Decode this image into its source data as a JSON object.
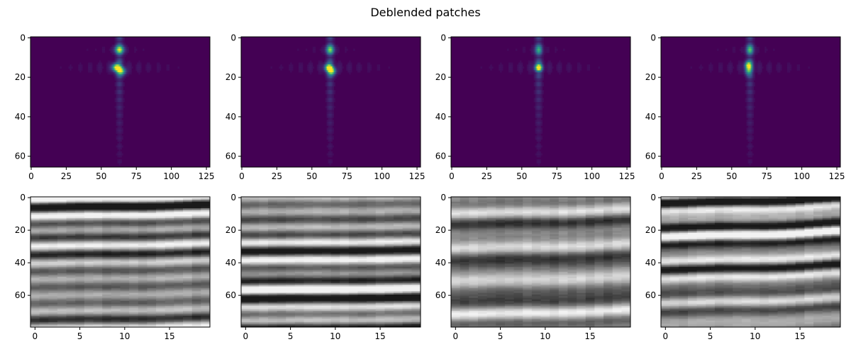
{
  "title": "Deblended patches",
  "colors": {
    "viridis_low": "#440154",
    "viridis_mid": "#21918c",
    "viridis_high": "#fde725",
    "gray_low": "#1a1a1a",
    "gray_high": "#f2f2f2"
  },
  "chart_data": [
    {
      "type": "heatmap",
      "row": "top",
      "index": 1,
      "colormap": "viridis",
      "xlim": [
        -0.5,
        127.5
      ],
      "ylim": [
        65.5,
        -0.5
      ],
      "xticks": [
        0,
        25,
        50,
        75,
        100,
        125
      ],
      "yticks": [
        0,
        20,
        40,
        60
      ],
      "features": {
        "peaks": [
          {
            "x": 63,
            "y": 6,
            "amp": 0.85
          },
          {
            "x": 61,
            "y": 15,
            "amp": 1.0
          },
          {
            "x": 64,
            "y": 17,
            "amp": 0.8
          }
        ],
        "streak_x": 63,
        "band_y": 15,
        "spread": 1.0
      }
    },
    {
      "type": "heatmap",
      "row": "top",
      "index": 2,
      "colormap": "viridis",
      "xlim": [
        -0.5,
        127.5
      ],
      "ylim": [
        65.5,
        -0.5
      ],
      "xticks": [
        0,
        25,
        50,
        75,
        100,
        125
      ],
      "yticks": [
        0,
        20,
        40,
        60
      ],
      "features": {
        "peaks": [
          {
            "x": 63,
            "y": 6,
            "amp": 0.7
          },
          {
            "x": 62,
            "y": 15,
            "amp": 0.9
          },
          {
            "x": 64,
            "y": 17,
            "amp": 0.85
          }
        ],
        "streak_x": 63,
        "band_y": 15,
        "spread": 0.9
      }
    },
    {
      "type": "heatmap",
      "row": "top",
      "index": 3,
      "colormap": "viridis",
      "xlim": [
        -0.5,
        127.5
      ],
      "ylim": [
        65.5,
        -0.5
      ],
      "xticks": [
        0,
        25,
        50,
        75,
        100,
        125
      ],
      "yticks": [
        0,
        20,
        40,
        60
      ],
      "features": {
        "peaks": [
          {
            "x": 62,
            "y": 6,
            "amp": 0.5
          },
          {
            "x": 62,
            "y": 15,
            "amp": 1.0
          }
        ],
        "streak_x": 62,
        "band_y": 15,
        "spread": 0.8
      }
    },
    {
      "type": "heatmap",
      "row": "top",
      "index": 4,
      "colormap": "viridis",
      "xlim": [
        -0.5,
        127.5
      ],
      "ylim": [
        65.5,
        -0.5
      ],
      "xticks": [
        0,
        25,
        50,
        75,
        100,
        125
      ],
      "yticks": [
        0,
        20,
        40,
        60
      ],
      "features": {
        "peaks": [
          {
            "x": 63,
            "y": 6,
            "amp": 0.6
          },
          {
            "x": 62,
            "y": 14,
            "amp": 0.95
          },
          {
            "x": 62,
            "y": 17,
            "amp": 0.5
          }
        ],
        "streak_x": 63,
        "band_y": 15,
        "spread": 0.8
      }
    },
    {
      "type": "heatmap",
      "row": "bottom",
      "index": 1,
      "colormap": "gray",
      "xlim": [
        -0.5,
        19.5
      ],
      "ylim": [
        79.5,
        -0.5
      ],
      "xticks": [
        0,
        5,
        10,
        15
      ],
      "yticks": [
        0,
        20,
        40,
        60
      ],
      "features": {
        "seed": 11,
        "dip": 0.08
      }
    },
    {
      "type": "heatmap",
      "row": "bottom",
      "index": 2,
      "colormap": "gray",
      "xlim": [
        -0.5,
        19.5
      ],
      "ylim": [
        79.5,
        -0.5
      ],
      "xticks": [
        0,
        5,
        10,
        15
      ],
      "yticks": [
        0,
        20,
        40,
        60
      ],
      "features": {
        "seed": 23,
        "dip": 0.04
      }
    },
    {
      "type": "heatmap",
      "row": "bottom",
      "index": 3,
      "colormap": "gray",
      "xlim": [
        -0.5,
        19.5
      ],
      "ylim": [
        79.5,
        -0.5
      ],
      "xticks": [
        0,
        5,
        10,
        15
      ],
      "yticks": [
        0,
        20,
        40,
        60
      ],
      "features": {
        "seed": 37,
        "dip": 0.12
      }
    },
    {
      "type": "heatmap",
      "row": "bottom",
      "index": 4,
      "colormap": "gray",
      "xlim": [
        -0.5,
        19.5
      ],
      "ylim": [
        79.5,
        -0.5
      ],
      "xticks": [
        0,
        5,
        10,
        15
      ],
      "yticks": [
        0,
        20,
        40,
        60
      ],
      "features": {
        "seed": 51,
        "dip": 0.15
      }
    }
  ]
}
